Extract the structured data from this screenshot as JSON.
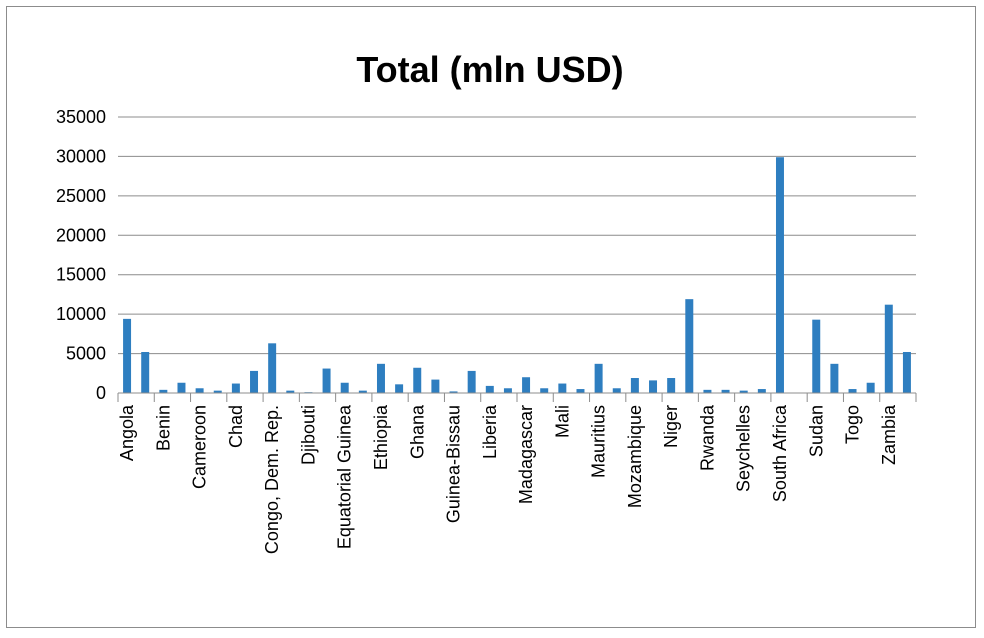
{
  "chart_data": {
    "type": "bar",
    "title": "Total (mln USD)",
    "xlabel": "",
    "ylabel": "",
    "ylim": [
      0,
      35000
    ],
    "yticks": [
      "0",
      "5000",
      "10000",
      "15000",
      "20000",
      "25000",
      "30000",
      "35000"
    ],
    "grid": true,
    "legend": "none",
    "bar_color": "#2E7EC0",
    "categories": [
      "Angola",
      "",
      "Benin",
      "",
      "Cameroon",
      "",
      "Chad",
      "",
      "Congo, Dem. Rep.",
      "",
      "Djibouti",
      "",
      "Equatorial Guinea",
      "",
      "Ethiopia",
      "",
      "Ghana",
      "",
      "Guinea-Bissau",
      "",
      "Liberia",
      "",
      "Madagascar",
      "",
      "Mali",
      "",
      "Mauritius",
      "",
      "Mozambique",
      "",
      "Niger",
      "",
      "Rwanda",
      "",
      "Seychelles",
      "",
      "South Africa",
      "",
      "Sudan",
      "",
      "Togo",
      "",
      "Zambia",
      ""
    ],
    "values": [
      9400,
      5200,
      400,
      1300,
      600,
      300,
      1200,
      2800,
      6300,
      300,
      100,
      3100,
      1300,
      300,
      3700,
      1100,
      3200,
      1700,
      200,
      2800,
      900,
      600,
      2000,
      600,
      1200,
      500,
      3700,
      600,
      1900,
      1600,
      1900,
      11900,
      400,
      400,
      300,
      500,
      29900,
      0,
      9300,
      3700,
      500,
      1300,
      11200,
      5200
    ]
  }
}
